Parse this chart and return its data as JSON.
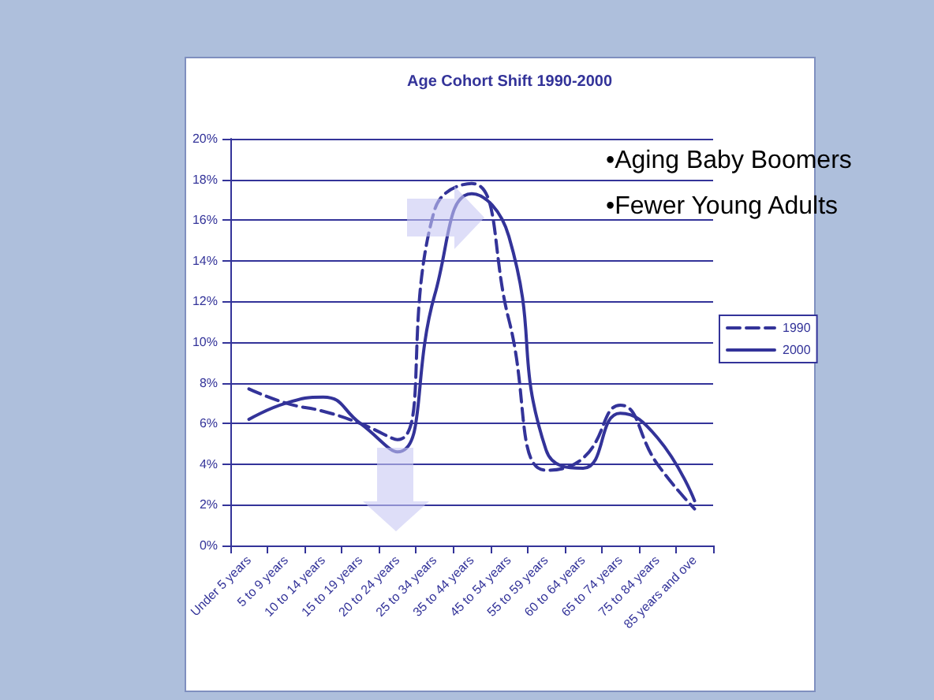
{
  "chart_data": {
    "type": "line",
    "title": "Age Cohort Shift 1990-2000",
    "categories": [
      "Under 5 years",
      "5 to 9 years",
      "10 to 14 years",
      "15 to 19 years",
      "20 to 24 years",
      "25 to 34 years",
      "35 to 44 years",
      "45 to 54 years",
      "55 to 59 years",
      "60 to 64 years",
      "65 to 74 years",
      "75 to 84 years",
      "85 years and ove"
    ],
    "series": [
      {
        "name": "1990",
        "color": "#333399",
        "line_style": "dashed",
        "values": [
          0.077,
          0.07,
          0.066,
          0.06,
          0.052,
          0.165,
          0.178,
          0.111,
          0.037,
          0.043,
          0.069,
          0.04,
          0.018
        ]
      },
      {
        "name": "2000",
        "color": "#333399",
        "line_style": "solid",
        "values": [
          0.062,
          0.07,
          0.073,
          0.06,
          0.046,
          0.123,
          0.173,
          0.152,
          0.047,
          0.038,
          0.065,
          0.053,
          0.022
        ]
      }
    ],
    "ylim": [
      0,
      0.2
    ],
    "yticks": [
      {
        "value": 0,
        "label": "0%"
      },
      {
        "value": 0.02,
        "label": "2%"
      },
      {
        "value": 0.04,
        "label": "4%"
      },
      {
        "value": 0.06,
        "label": "6%"
      },
      {
        "value": 0.08,
        "label": "8%"
      },
      {
        "value": 0.1,
        "label": "10%"
      },
      {
        "value": 0.12,
        "label": "12%"
      },
      {
        "value": 0.14,
        "label": "14%"
      },
      {
        "value": 0.16,
        "label": "16%"
      },
      {
        "value": 0.18,
        "label": "18%"
      },
      {
        "value": 0.2,
        "label": "20%"
      }
    ],
    "annotations": [
      "•Aging Baby Boomers",
      "•Fewer Young Adults"
    ],
    "grid": "y",
    "legend": "right",
    "marker": "none"
  }
}
